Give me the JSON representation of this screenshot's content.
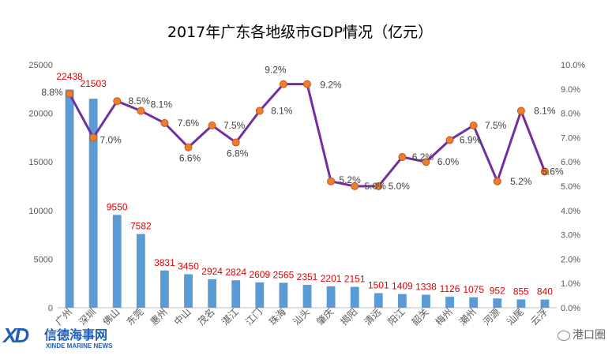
{
  "chart_data": {
    "type": "bar+line",
    "title": "2017年广东各地级市GDP情况（亿元）",
    "categories": [
      "广州",
      "深圳",
      "佛山",
      "东莞",
      "惠州",
      "中山",
      "茂名",
      "湛江",
      "江门",
      "珠海",
      "汕头",
      "肇庆",
      "揭阳",
      "清远",
      "阳江",
      "韶关",
      "梅州",
      "潮州",
      "河源",
      "汕尾",
      "云浮"
    ],
    "series": [
      {
        "kind": "bar",
        "axis": "left",
        "color": "#5b9bd5",
        "values": [
          22438,
          21503,
          9550,
          7582,
          3831,
          3450,
          2924,
          2824,
          2609,
          2565,
          2351,
          2201,
          2151,
          1501,
          1409,
          1338,
          1126,
          1075,
          952,
          855,
          840
        ],
        "labels": [
          "22438",
          "21503",
          "9550",
          "7582",
          "3831",
          "3450",
          "2924",
          "2824",
          "2609",
          "2565",
          "2351",
          "2201",
          "2151",
          "1501",
          "1409",
          "1338",
          "1126",
          "1075",
          "952",
          "855",
          "840"
        ]
      },
      {
        "kind": "line",
        "axis": "right",
        "color": "#7030a0",
        "marker": "#ed7d31",
        "values": [
          8.8,
          7.0,
          8.5,
          8.1,
          7.6,
          6.6,
          7.5,
          6.8,
          8.1,
          9.2,
          9.2,
          5.2,
          5.0,
          5.0,
          6.2,
          6.0,
          6.9,
          7.5,
          5.2,
          8.1,
          5.6
        ],
        "labels": [
          "8.8%",
          "7.0%",
          "8.5%",
          "8.1%",
          "7.6%",
          "6.6%",
          "7.5%",
          "6.8%",
          "8.1%",
          "9.2%",
          "9.2%",
          "5.2%",
          "5.0%",
          "5.0%",
          "6.2%",
          "6.0%",
          "6.9%",
          "7.5%",
          "5.2%",
          "8.1%",
          "5.6%"
        ]
      }
    ],
    "y_left": {
      "min": 0,
      "max": 25000,
      "ticks": [
        "0",
        "5000",
        "10000",
        "15000",
        "20000",
        "25000"
      ]
    },
    "y_right": {
      "min": 0,
      "max": 10,
      "ticks": [
        "0.0%",
        "1.0%",
        "2.0%",
        "3.0%",
        "4.0%",
        "5.0%",
        "6.0%",
        "7.0%",
        "8.0%",
        "9.0%",
        "10.0%"
      ]
    },
    "grid": false
  },
  "logo": {
    "mark": "XD",
    "cn": "信德海事网",
    "en": "XINDE MARINE NEWS"
  },
  "watermark": {
    "text": "港口圈",
    "icon": "wechat-icon"
  }
}
